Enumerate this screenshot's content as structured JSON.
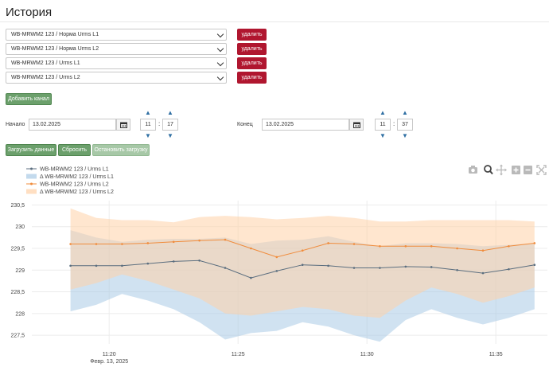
{
  "page": {
    "title": "История"
  },
  "channels": [
    {
      "value": "WB-MRWM2 123 / Норма Urms L1",
      "delete_label": "удалить"
    },
    {
      "value": "WB-MRWM2 123 / Норма Urms L2",
      "delete_label": "удалить"
    },
    {
      "value": "WB-MRWM2 123 / Urms L1",
      "delete_label": "удалить"
    },
    {
      "value": "WB-MRWM2 123 / Urms L2",
      "delete_label": "удалить"
    }
  ],
  "add_channel_label": "Добавить канал",
  "start": {
    "label": "Начало",
    "date": "13.02.2025",
    "hour": "11",
    "minute": "17"
  },
  "end": {
    "label": "Конец",
    "date": "13.02.2025",
    "hour": "11",
    "minute": "37"
  },
  "actions": {
    "load": "Загрузить данные",
    "reset": "Сбросить",
    "stop": "Остановить загрузку"
  },
  "modebar": [
    "camera-icon",
    "zoom-icon",
    "pan-icon",
    "zoom-in-icon",
    "zoom-out-icon",
    "autoscale-icon"
  ],
  "chart_data": {
    "type": "line",
    "x": [
      "11:18:30",
      "11:19:30",
      "11:20:30",
      "11:21:30",
      "11:22:30",
      "11:23:30",
      "11:24:30",
      "11:25:30",
      "11:26:30",
      "11:27:30",
      "11:28:30",
      "11:29:30",
      "11:30:30",
      "11:31:30",
      "11:32:30",
      "11:33:30",
      "11:34:30",
      "11:35:30",
      "11:36:30"
    ],
    "x_tick_values": [
      "11:20",
      "11:25",
      "11:30",
      "11:35"
    ],
    "x_tick_labels": [
      "11:20",
      "11:25",
      "11:30",
      "11:35"
    ],
    "x_date_label": "Февр. 13, 2025",
    "ylim": [
      227.3,
      230.6
    ],
    "y_ticks": [
      "227,5",
      "228",
      "228,5",
      "229",
      "229,5",
      "230",
      "230,5"
    ],
    "y_tick_values": [
      227.5,
      228,
      228.5,
      229,
      229.5,
      230,
      230.5
    ],
    "grid": true,
    "legend_position": "top-left",
    "series": [
      {
        "name": "WB-MRWM2 123 / Urms L1",
        "kind": "line",
        "color": "#5b6e7f",
        "values": [
          229.1,
          229.1,
          229.1,
          229.15,
          229.2,
          229.22,
          229.05,
          228.82,
          228.98,
          229.12,
          229.1,
          229.05,
          229.05,
          229.08,
          229.07,
          229.0,
          228.93,
          229.02,
          229.12
        ]
      },
      {
        "name": "Δ WB-MRWM2 123 / Urms L1",
        "kind": "band",
        "color": "#a9cbe6",
        "upper": [
          229.92,
          229.75,
          229.65,
          229.7,
          229.72,
          229.72,
          229.75,
          229.6,
          229.68,
          229.7,
          229.78,
          229.65,
          229.55,
          229.62,
          229.62,
          229.6,
          229.55,
          229.58,
          229.62
        ],
        "lower": [
          228.05,
          228.2,
          228.45,
          228.3,
          228.1,
          227.8,
          227.4,
          227.55,
          227.6,
          227.8,
          227.7,
          227.5,
          227.35,
          227.85,
          228.1,
          227.9,
          227.75,
          227.9,
          228.1
        ]
      },
      {
        "name": "WB-MRWM2 123 / Urms L2",
        "kind": "line",
        "color": "#f08c3c",
        "values": [
          229.6,
          229.6,
          229.6,
          229.62,
          229.65,
          229.68,
          229.7,
          229.5,
          229.3,
          229.45,
          229.62,
          229.6,
          229.55,
          229.55,
          229.55,
          229.5,
          229.45,
          229.55,
          229.62
        ]
      },
      {
        "name": "Δ WB-MRWM2 123 / Urms L2",
        "kind": "band",
        "color": "#ffd2a8",
        "upper": [
          230.42,
          230.2,
          230.15,
          230.15,
          230.1,
          230.22,
          230.25,
          230.22,
          230.17,
          230.2,
          230.25,
          230.2,
          230.12,
          230.12,
          230.15,
          230.15,
          230.15,
          230.15,
          230.12
        ],
        "lower": [
          228.55,
          228.7,
          228.9,
          228.75,
          228.55,
          228.35,
          228.0,
          227.95,
          228.05,
          228.15,
          228.1,
          227.95,
          227.9,
          228.3,
          228.6,
          228.45,
          228.25,
          228.4,
          228.6
        ]
      }
    ]
  }
}
